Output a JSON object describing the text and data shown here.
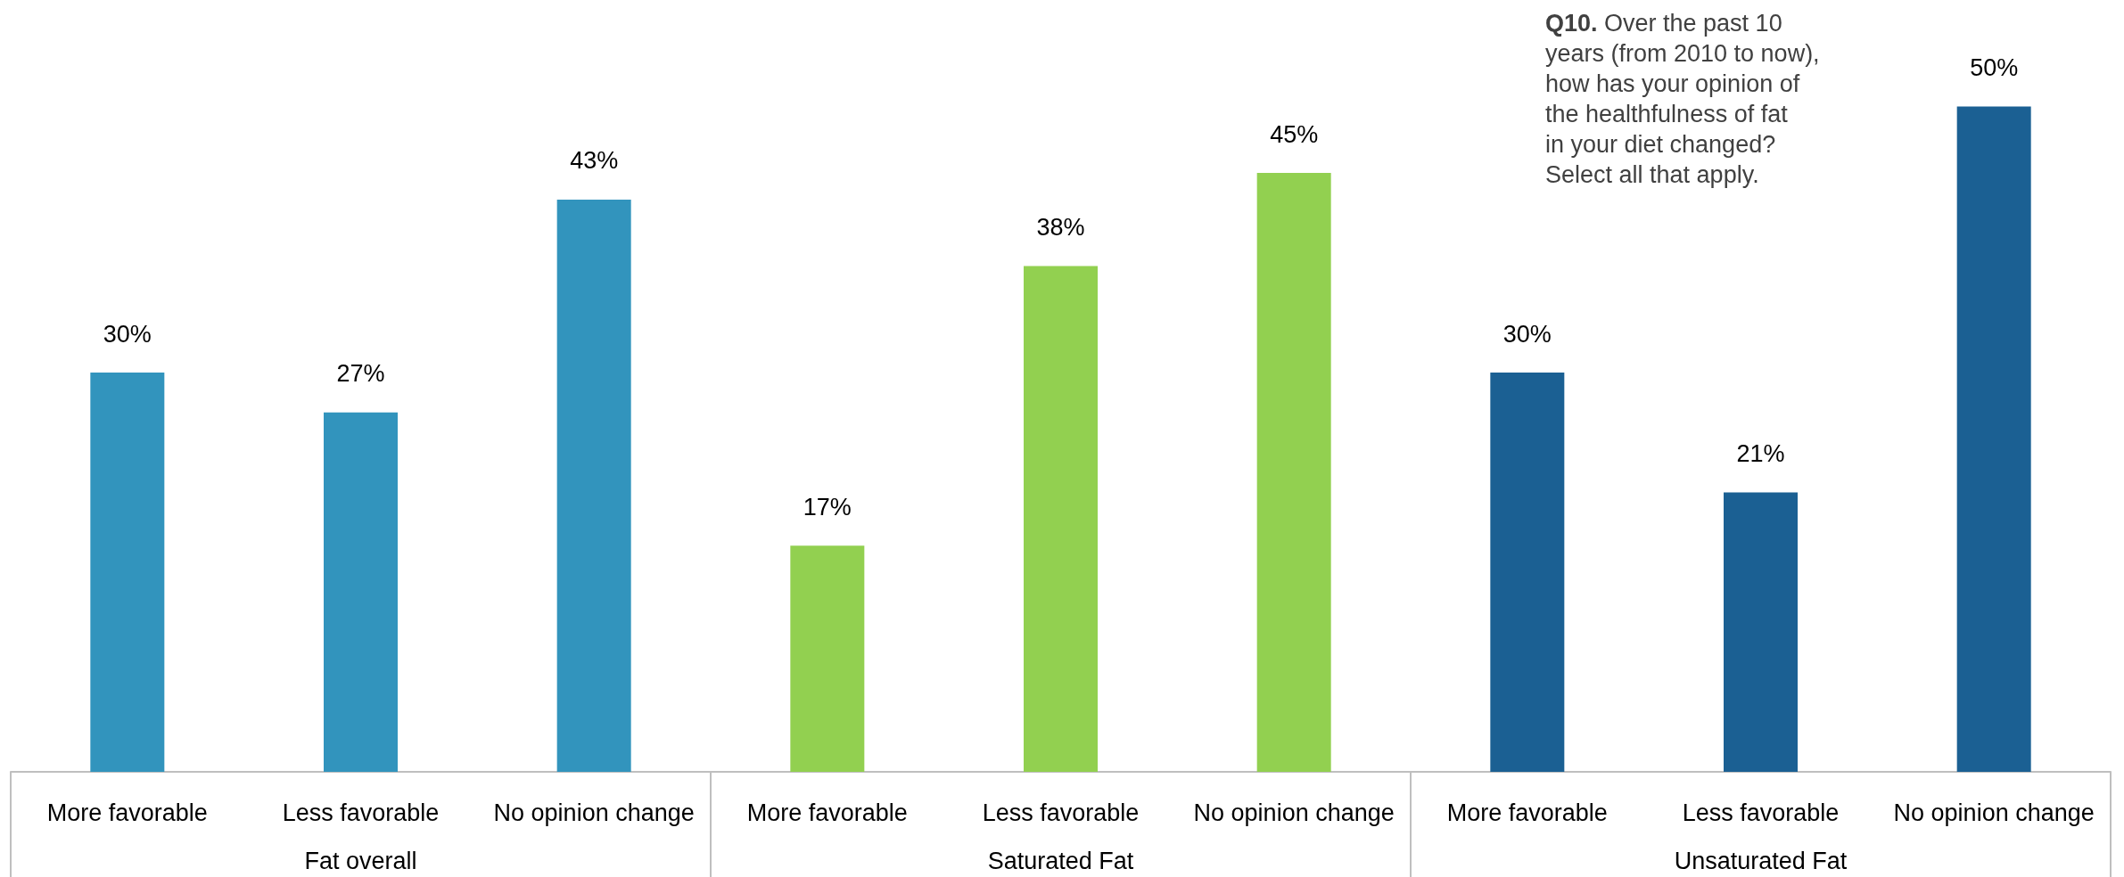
{
  "chart_data": {
    "type": "bar",
    "title": "Q10. Over the past 10 years (from 2010 to now), how has your opinion of the healthfulness of fat in your diet changed? Select all that apply.",
    "categories": [
      "More favorable",
      "Less favorable",
      "No opinion change",
      "More favorable",
      "Less favorable",
      "No opinion change",
      "More favorable",
      "Less favorable",
      "No opinion change"
    ],
    "values": [
      30,
      27,
      43,
      17,
      38,
      45,
      30,
      21,
      50
    ],
    "colors": [
      "#3294bd",
      "#3294bd",
      "#3294bd",
      "#92d050",
      "#92d050",
      "#92d050",
      "#1b6093",
      "#1b6093",
      "#1b6093"
    ],
    "annotations": [
      "Fat overall",
      "Saturated Fat",
      "Unsaturated Fat"
    ],
    "value_labels": [
      "30%",
      "27%",
      "43%",
      "17%",
      "38%",
      "45%",
      "30%",
      "21%",
      "50%"
    ]
  }
}
